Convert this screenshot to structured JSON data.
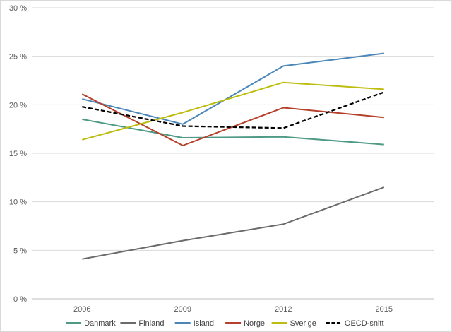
{
  "chart_data": {
    "type": "line",
    "title": "",
    "xlabel": "",
    "ylabel": "",
    "categories": [
      "2006",
      "2009",
      "2012",
      "2015"
    ],
    "ylim": [
      0,
      30
    ],
    "yticks": [
      0,
      5,
      10,
      15,
      20,
      25,
      30
    ],
    "ytick_labels": [
      "0 %",
      "5 %",
      "10 %",
      "15 %",
      "20 %",
      "25 %",
      "30 %"
    ],
    "grid": true,
    "legend_position": "bottom",
    "series": [
      {
        "name": "Danmark",
        "color": "#4e9a85",
        "dashed": false,
        "values": [
          18.5,
          16.6,
          16.7,
          15.9
        ]
      },
      {
        "name": "Finland",
        "color": "#6b6b6b",
        "dashed": false,
        "values": [
          4.1,
          6.0,
          7.7,
          11.5
        ]
      },
      {
        "name": "Island",
        "color": "#4a86b8",
        "dashed": false,
        "values": [
          20.6,
          18.0,
          24.0,
          25.3
        ]
      },
      {
        "name": "Norge",
        "color": "#b5402b",
        "dashed": false,
        "values": [
          21.1,
          15.8,
          19.7,
          18.7
        ]
      },
      {
        "name": "Sverige",
        "color": "#bdbd10",
        "dashed": false,
        "values": [
          16.4,
          19.2,
          22.3,
          21.6
        ]
      },
      {
        "name": "OECD-snitt",
        "color": "#000000",
        "dashed": true,
        "values": [
          19.8,
          17.8,
          17.6,
          21.3
        ]
      }
    ]
  }
}
